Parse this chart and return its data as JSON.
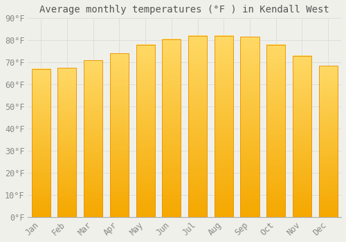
{
  "title": "Average monthly temperatures (°F ) in Kendall West",
  "months": [
    "Jan",
    "Feb",
    "Mar",
    "Apr",
    "May",
    "Jun",
    "Jul",
    "Aug",
    "Sep",
    "Oct",
    "Nov",
    "Dec"
  ],
  "values": [
    67,
    67.5,
    71,
    74,
    78,
    80.5,
    82,
    82,
    81.5,
    78,
    73,
    68.5
  ],
  "bar_color_bottom": "#F5A800",
  "bar_color_top": "#FFD966",
  "bar_edge_color": "#E89000",
  "ylim": [
    0,
    90
  ],
  "ytick_step": 10,
  "background_color": "#F0F0EA",
  "grid_color": "#DDDDDD",
  "title_fontsize": 10,
  "tick_fontsize": 8.5,
  "font_family": "monospace"
}
